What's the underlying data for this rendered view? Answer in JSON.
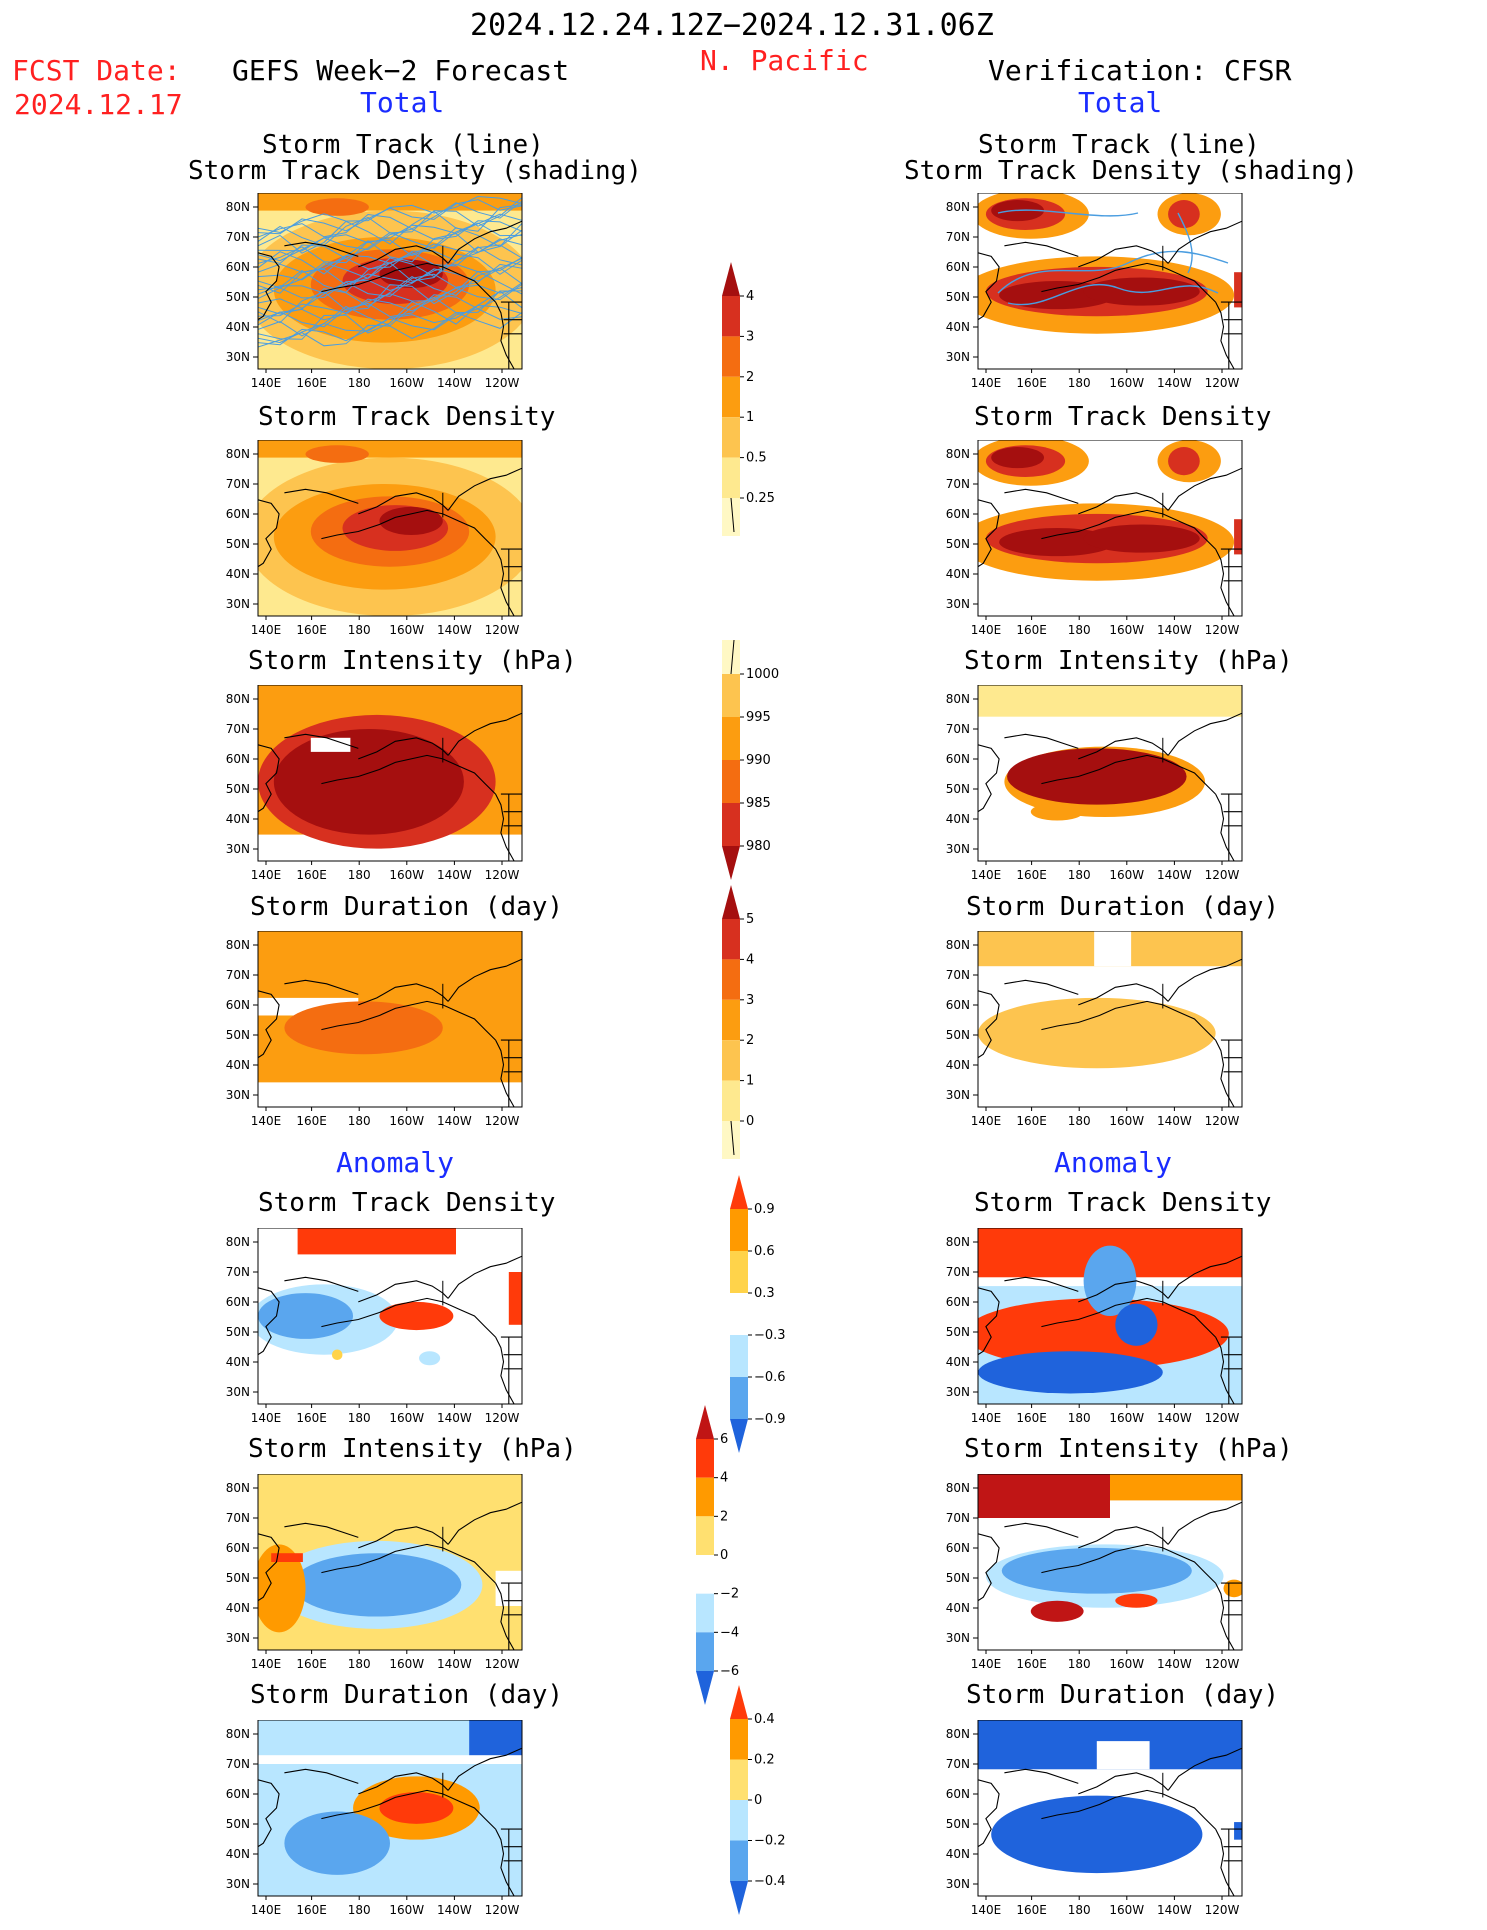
{
  "header": {
    "period": "2024.12.24.12Z−2024.12.31.06Z",
    "region": "N. Pacific",
    "fcst_label": "FCST Date:",
    "fcst_date": "2024.12.17",
    "left_title": "GEFS Week−2 Forecast",
    "right_title": "Verification: CFSR",
    "total_label": "Total",
    "anomaly_label": "Anomaly"
  },
  "panel_titles": {
    "track_line": "Storm Track (line)",
    "track_shading": "Storm Track Density (shading)",
    "density": "Storm Track Density",
    "intensity": "Storm Intensity (hPa)",
    "duration": "Storm Duration (day)"
  },
  "axes": {
    "lon_ticks": [
      "140E",
      "160E",
      "180",
      "160W",
      "140W",
      "120W"
    ],
    "lat_ticks": [
      "80N",
      "70N",
      "60N",
      "50N",
      "40N",
      "30N"
    ]
  },
  "colorbars": {
    "density_total": {
      "labels": [
        "4",
        "3",
        "2",
        "1",
        "0.5",
        "0.25"
      ],
      "colors": [
        "#a50f0f",
        "#d7301f",
        "#f46d11",
        "#fc9d10",
        "#fdc44f",
        "#fee98f",
        "#fff8c4"
      ]
    },
    "intensity_total": {
      "labels": [
        "1000",
        "995",
        "990",
        "985",
        "980"
      ],
      "colors": [
        "#fff8c4",
        "#fdc44f",
        "#fc9d10",
        "#f46d11",
        "#d7301f",
        "#a50f0f"
      ]
    },
    "duration_total": {
      "labels": [
        "5",
        "4",
        "3",
        "2",
        "1",
        "0"
      ],
      "colors": [
        "#a50f0f",
        "#d7301f",
        "#f46d11",
        "#fc9d10",
        "#fdc44f",
        "#fee98f",
        "#fff8c4"
      ]
    },
    "density_anom": {
      "labels": [
        "0.9",
        "0.6",
        "0.3",
        "−0.3",
        "−0.6",
        "−0.9"
      ],
      "colors": [
        "#ff3a0a",
        "#ff9a00",
        "#ffd34a",
        "#ffffff",
        "#b8e6ff",
        "#5aa6ee",
        "#1f63dc"
      ]
    },
    "intensity_anom": {
      "labels": [
        "6",
        "4",
        "2",
        "0",
        "−2",
        "−4",
        "−6"
      ],
      "colors": [
        "#c01515",
        "#ff3a0a",
        "#ff9a00",
        "#ffe070",
        "#ffffff",
        "#b8e6ff",
        "#5aa6ee",
        "#1f63dc"
      ]
    },
    "duration_anom": {
      "labels": [
        "0.4",
        "0.2",
        "0",
        "−0.2",
        "−0.4"
      ],
      "colors": [
        "#ff3a0a",
        "#ff9a00",
        "#ffe070",
        "#b8e6ff",
        "#5aa6ee",
        "#1f63dc"
      ]
    }
  },
  "colors": {
    "title_red": "#ff2020",
    "label_blue": "#1a2cff",
    "track_line": "#4a9de0"
  }
}
